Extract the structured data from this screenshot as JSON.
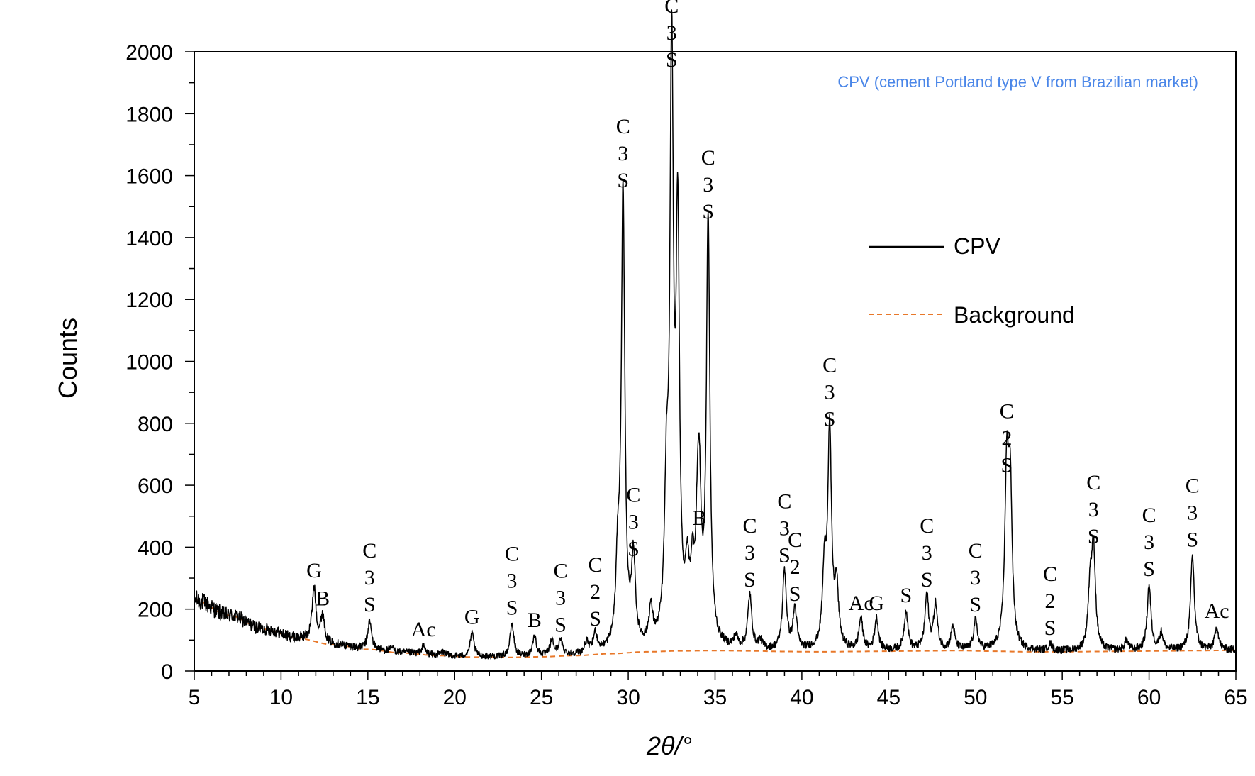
{
  "chart_data": {
    "type": "line",
    "xlabel": "2θ/°",
    "ylabel": "Counts",
    "xlim": [
      5,
      65
    ],
    "ylim": [
      0,
      2000
    ],
    "x_ticks": [
      5,
      10,
      15,
      20,
      25,
      30,
      35,
      40,
      45,
      50,
      55,
      60,
      65
    ],
    "y_ticks": [
      0,
      200,
      400,
      600,
      800,
      1000,
      1200,
      1400,
      1600,
      1800,
      2000
    ],
    "grid": false,
    "legend_position": "right",
    "annotation": "CPV (cement Portland type V from Brazilian market)",
    "colors": {
      "cpv": "#000000",
      "background": "#e8782a",
      "annotation": "#4a86e8"
    },
    "series": [
      {
        "name": "CPV",
        "style": "solid",
        "peaks": [
          {
            "x": 11.9,
            "y": 270
          },
          {
            "x": 12.4,
            "y": 180
          },
          {
            "x": 15.1,
            "y": 160
          },
          {
            "x": 16.4,
            "y": 75
          },
          {
            "x": 18.2,
            "y": 80
          },
          {
            "x": 19.3,
            "y": 60
          },
          {
            "x": 21.0,
            "y": 120
          },
          {
            "x": 23.3,
            "y": 150
          },
          {
            "x": 24.6,
            "y": 110
          },
          {
            "x": 25.6,
            "y": 95
          },
          {
            "x": 26.1,
            "y": 95
          },
          {
            "x": 27.6,
            "y": 85
          },
          {
            "x": 28.1,
            "y": 115
          },
          {
            "x": 29.4,
            "y": 300
          },
          {
            "x": 29.7,
            "y": 1530
          },
          {
            "x": 30.3,
            "y": 340
          },
          {
            "x": 31.3,
            "y": 175
          },
          {
            "x": 32.2,
            "y": 500
          },
          {
            "x": 32.5,
            "y": 1920
          },
          {
            "x": 32.85,
            "y": 1360
          },
          {
            "x": 33.4,
            "y": 260
          },
          {
            "x": 33.7,
            "y": 255
          },
          {
            "x": 34.0,
            "y": 350
          },
          {
            "x": 34.1,
            "y": 440
          },
          {
            "x": 34.6,
            "y": 1430
          },
          {
            "x": 36.2,
            "y": 100
          },
          {
            "x": 37.0,
            "y": 240
          },
          {
            "x": 37.6,
            "y": 90
          },
          {
            "x": 39.0,
            "y": 320
          },
          {
            "x": 39.6,
            "y": 195
          },
          {
            "x": 41.3,
            "y": 300
          },
          {
            "x": 41.6,
            "y": 760
          },
          {
            "x": 42.0,
            "y": 250
          },
          {
            "x": 43.4,
            "y": 165
          },
          {
            "x": 44.3,
            "y": 165
          },
          {
            "x": 46.0,
            "y": 190
          },
          {
            "x": 47.2,
            "y": 240
          },
          {
            "x": 47.7,
            "y": 210
          },
          {
            "x": 48.7,
            "y": 140
          },
          {
            "x": 50.0,
            "y": 160
          },
          {
            "x": 51.8,
            "y": 610
          },
          {
            "x": 52.0,
            "y": 560
          },
          {
            "x": 54.3,
            "y": 85
          },
          {
            "x": 56.6,
            "y": 250
          },
          {
            "x": 56.8,
            "y": 380
          },
          {
            "x": 58.7,
            "y": 95
          },
          {
            "x": 60.0,
            "y": 275
          },
          {
            "x": 60.7,
            "y": 120
          },
          {
            "x": 62.5,
            "y": 370
          },
          {
            "x": 63.9,
            "y": 140
          }
        ]
      },
      {
        "name": "Background",
        "style": "dashed",
        "x": [
          5,
          7,
          9,
          11,
          13,
          15,
          17,
          19,
          21,
          23,
          25,
          27,
          29,
          31,
          33,
          35,
          37,
          39,
          41,
          43,
          45,
          47,
          49,
          51,
          53,
          55,
          57,
          59,
          61,
          63,
          65
        ],
        "y": [
          230,
          180,
          135,
          105,
          85,
          70,
          58,
          50,
          45,
          44,
          46,
          50,
          56,
          62,
          65,
          66,
          65,
          63,
          62,
          63,
          64,
          65,
          66,
          64,
          62,
          62,
          63,
          64,
          65,
          66,
          67
        ]
      }
    ],
    "peak_labels": [
      {
        "x": 11.9,
        "y": 270,
        "text": "G"
      },
      {
        "x": 12.4,
        "y": 180,
        "text": "B"
      },
      {
        "x": 15.1,
        "y": 160,
        "text": "C3S"
      },
      {
        "x": 18.2,
        "y": 80,
        "text": "Ac"
      },
      {
        "x": 21.0,
        "y": 120,
        "text": "G"
      },
      {
        "x": 23.3,
        "y": 150,
        "text": "C3S"
      },
      {
        "x": 24.6,
        "y": 110,
        "text": "B"
      },
      {
        "x": 26.1,
        "y": 95,
        "text": "C3S"
      },
      {
        "x": 28.1,
        "y": 115,
        "text": "C2S"
      },
      {
        "x": 29.7,
        "y": 1530,
        "text": "C3S"
      },
      {
        "x": 30.3,
        "y": 340,
        "text": "C3S"
      },
      {
        "x": 32.5,
        "y": 1920,
        "text": "C3S"
      },
      {
        "x": 34.1,
        "y": 440,
        "text": "B"
      },
      {
        "x": 34.6,
        "y": 1430,
        "text": "C3S"
      },
      {
        "x": 37.0,
        "y": 240,
        "text": "C3S"
      },
      {
        "x": 39.0,
        "y": 320,
        "text": "C3S"
      },
      {
        "x": 39.6,
        "y": 195,
        "text": "C2S"
      },
      {
        "x": 41.6,
        "y": 760,
        "text": "C3S"
      },
      {
        "x": 43.4,
        "y": 165,
        "text": "Ac"
      },
      {
        "x": 44.3,
        "y": 165,
        "text": "G"
      },
      {
        "x": 46.0,
        "y": 190,
        "text": "S"
      },
      {
        "x": 47.2,
        "y": 240,
        "text": "C3S"
      },
      {
        "x": 50.0,
        "y": 160,
        "text": "C3S"
      },
      {
        "x": 51.8,
        "y": 610,
        "text": "C2S"
      },
      {
        "x": 54.3,
        "y": 85,
        "text": "C2S"
      },
      {
        "x": 56.8,
        "y": 380,
        "text": "C3S"
      },
      {
        "x": 60.0,
        "y": 275,
        "text": "C3S"
      },
      {
        "x": 62.5,
        "y": 370,
        "text": "C3S"
      },
      {
        "x": 63.9,
        "y": 140,
        "text": "Ac"
      }
    ]
  }
}
